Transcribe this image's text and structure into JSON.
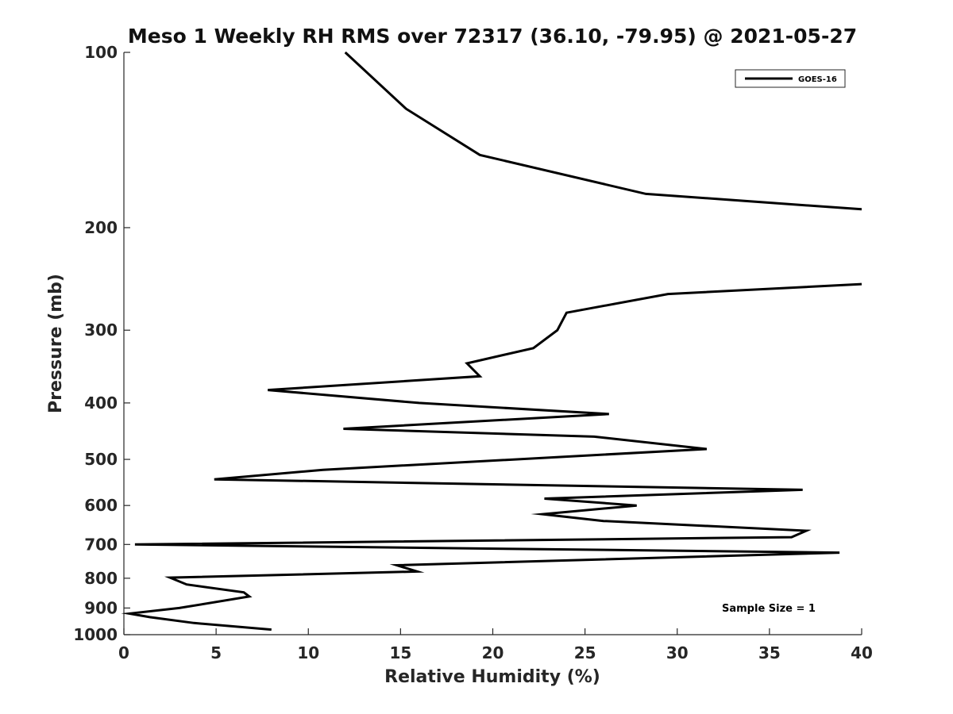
{
  "chart_data": {
    "type": "line",
    "title": "Meso 1 Weekly RH RMS over 72317 (36.10, -79.95) @ 2021-05-27",
    "xlabel": "Relative Humidity (%)",
    "ylabel": "Pressure (mb)",
    "xlim": [
      0,
      40
    ],
    "ylim": [
      1000,
      100
    ],
    "yscale": "log",
    "y_reversed": true,
    "grid": false,
    "legend_position": "top-right",
    "x_ticks": [
      "0",
      "5",
      "10",
      "15",
      "20",
      "25",
      "30",
      "35",
      "40"
    ],
    "y_ticks": [
      "100",
      "200",
      "300",
      "400",
      "500",
      "600",
      "700",
      "800",
      "900",
      "1000"
    ],
    "series": [
      {
        "name": "GOES-16",
        "color": "#000000",
        "segments": [
          [
            {
              "x": 12.0,
              "y": 100
            },
            {
              "x": 15.3,
              "y": 125
            },
            {
              "x": 19.3,
              "y": 150
            },
            {
              "x": 28.3,
              "y": 175
            },
            {
              "x": 40.0,
              "y": 186
            }
          ],
          [
            {
              "x": 40.0,
              "y": 250
            },
            {
              "x": 29.5,
              "y": 260
            },
            {
              "x": 24.0,
              "y": 280
            },
            {
              "x": 23.5,
              "y": 300
            },
            {
              "x": 22.2,
              "y": 322
            },
            {
              "x": 18.6,
              "y": 342
            },
            {
              "x": 19.3,
              "y": 360
            },
            {
              "x": 7.8,
              "y": 380
            },
            {
              "x": 16.0,
              "y": 400
            },
            {
              "x": 26.3,
              "y": 418
            },
            {
              "x": 11.9,
              "y": 443
            },
            {
              "x": 25.5,
              "y": 457
            },
            {
              "x": 31.6,
              "y": 480
            },
            {
              "x": 10.8,
              "y": 521
            },
            {
              "x": 4.9,
              "y": 541
            },
            {
              "x": 36.8,
              "y": 564
            },
            {
              "x": 22.8,
              "y": 584
            },
            {
              "x": 27.8,
              "y": 600
            },
            {
              "x": 22.7,
              "y": 621
            },
            {
              "x": 26.0,
              "y": 638
            },
            {
              "x": 37.0,
              "y": 663
            },
            {
              "x": 36.2,
              "y": 680
            },
            {
              "x": 0.6,
              "y": 700
            },
            {
              "x": 38.8,
              "y": 723
            },
            {
              "x": 14.8,
              "y": 760
            },
            {
              "x": 15.9,
              "y": 779
            },
            {
              "x": 2.5,
              "y": 798
            },
            {
              "x": 3.4,
              "y": 820
            },
            {
              "x": 6.5,
              "y": 846
            },
            {
              "x": 6.8,
              "y": 860
            },
            {
              "x": 3.0,
              "y": 900
            },
            {
              "x": 0.3,
              "y": 920
            },
            {
              "x": 1.4,
              "y": 933
            },
            {
              "x": 3.8,
              "y": 955
            },
            {
              "x": 8.0,
              "y": 980
            }
          ]
        ]
      }
    ],
    "annotations": [
      "Sample Size = 1"
    ]
  }
}
